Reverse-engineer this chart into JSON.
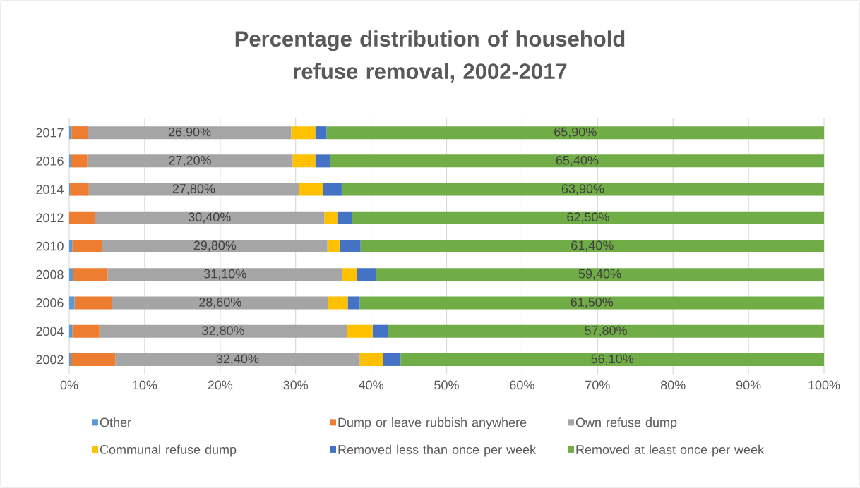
{
  "chart_data": {
    "type": "bar",
    "orientation": "horizontal",
    "stacked": true,
    "title": "Percentage distribution of household refuse removal, 2002-2017",
    "categories": [
      "2017",
      "2016",
      "2014",
      "2012",
      "2010",
      "2008",
      "2006",
      "2004",
      "2002"
    ],
    "series": [
      {
        "name": "Other",
        "color": "#5b9bd5",
        "values": [
          0.3,
          0.2,
          0.1,
          0,
          0.4,
          0.5,
          0.7,
          0.4,
          0.2
        ]
      },
      {
        "name": "Dump or leave rubbish anywhere",
        "color": "#ed7d31",
        "values": [
          2.2,
          2.2,
          2.5,
          3.4,
          4.0,
          4.6,
          5.0,
          3.6,
          5.9
        ]
      },
      {
        "name": "Own refuse dump",
        "color": "#a5a5a5",
        "values": [
          26.9,
          27.2,
          27.8,
          30.4,
          29.8,
          31.1,
          28.6,
          32.8,
          32.4
        ],
        "value_labels": [
          "26,90%",
          "27,20%",
          "27,80%",
          "30,40%",
          "29,80%",
          "31,10%",
          "28,60%",
          "32,80%",
          "32,40%"
        ]
      },
      {
        "name": "Communal refuse dump",
        "color": "#ffc000",
        "values": [
          3.2,
          3.0,
          3.2,
          1.7,
          1.6,
          1.9,
          2.6,
          3.4,
          3.1
        ]
      },
      {
        "name": "Removed less than once per week",
        "color": "#4472c4",
        "values": [
          1.5,
          2.0,
          2.5,
          2.0,
          2.8,
          2.5,
          1.6,
          2.0,
          2.3
        ]
      },
      {
        "name": "Removed at least once per week",
        "color": "#70ad47",
        "values": [
          65.9,
          65.4,
          63.9,
          62.5,
          61.4,
          59.4,
          61.5,
          57.8,
          56.1
        ],
        "value_labels": [
          "65,90%",
          "65,40%",
          "63,90%",
          "62,50%",
          "61,40%",
          "59,40%",
          "61,50%",
          "57,80%",
          "56,10%"
        ]
      }
    ],
    "xlim": [
      0,
      100
    ],
    "xticks": [
      {
        "value": 0,
        "label": "0%"
      },
      {
        "value": 10,
        "label": "10%"
      },
      {
        "value": 20,
        "label": "20%"
      },
      {
        "value": 30,
        "label": "30%"
      },
      {
        "value": 40,
        "label": "40%"
      },
      {
        "value": 50,
        "label": "50%"
      },
      {
        "value": 60,
        "label": "60%"
      },
      {
        "value": 70,
        "label": "70%"
      },
      {
        "value": 80,
        "label": "80%"
      },
      {
        "value": 90,
        "label": "90%"
      },
      {
        "value": 100,
        "label": "100%"
      }
    ],
    "grid": "x",
    "legend": "bottom"
  }
}
